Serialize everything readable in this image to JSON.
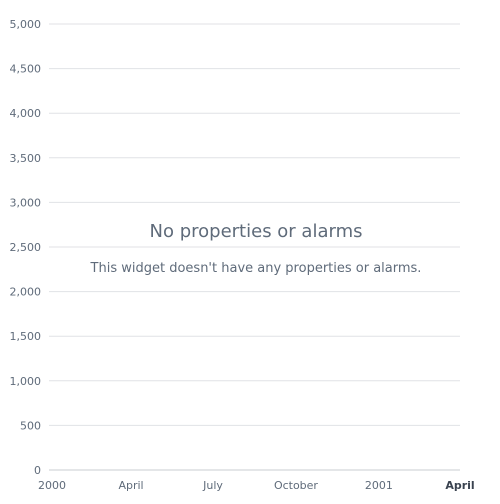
{
  "chart_data": {
    "type": "line",
    "title": "",
    "xlabel": "",
    "ylabel": "",
    "ylim": [
      0,
      5000
    ],
    "y_ticks": [
      0,
      500,
      1000,
      1500,
      2000,
      2500,
      3000,
      3500,
      4000,
      4500,
      5000
    ],
    "y_tick_labels": [
      "0",
      "500",
      "1,000",
      "1,500",
      "2,000",
      "2,500",
      "3,000",
      "3,500",
      "4,000",
      "4,500",
      "5,000"
    ],
    "x_range": [
      "2000-01-01",
      "2001-04-01"
    ],
    "x_ticks": [
      {
        "value": "2000-01-01",
        "label": "2000",
        "bold": false
      },
      {
        "value": "2000-04-01",
        "label": "April",
        "bold": false
      },
      {
        "value": "2000-07-01",
        "label": "July",
        "bold": false
      },
      {
        "value": "2000-10-01",
        "label": "October",
        "bold": false
      },
      {
        "value": "2001-01-01",
        "label": "2001",
        "bold": false
      },
      {
        "value": "2001-04-01",
        "label": "April",
        "bold": true
      }
    ],
    "series": [],
    "grid": true,
    "legend": "none"
  },
  "empty_state": {
    "title": "No properties or alarms",
    "message": "This widget doesn't have any properties or alarms."
  },
  "colors": {
    "grid": "#e0e2e6",
    "tick_text": "#5f6b7a",
    "axis": "#c9ccd1",
    "empty_text": "#5f6b7a"
  }
}
